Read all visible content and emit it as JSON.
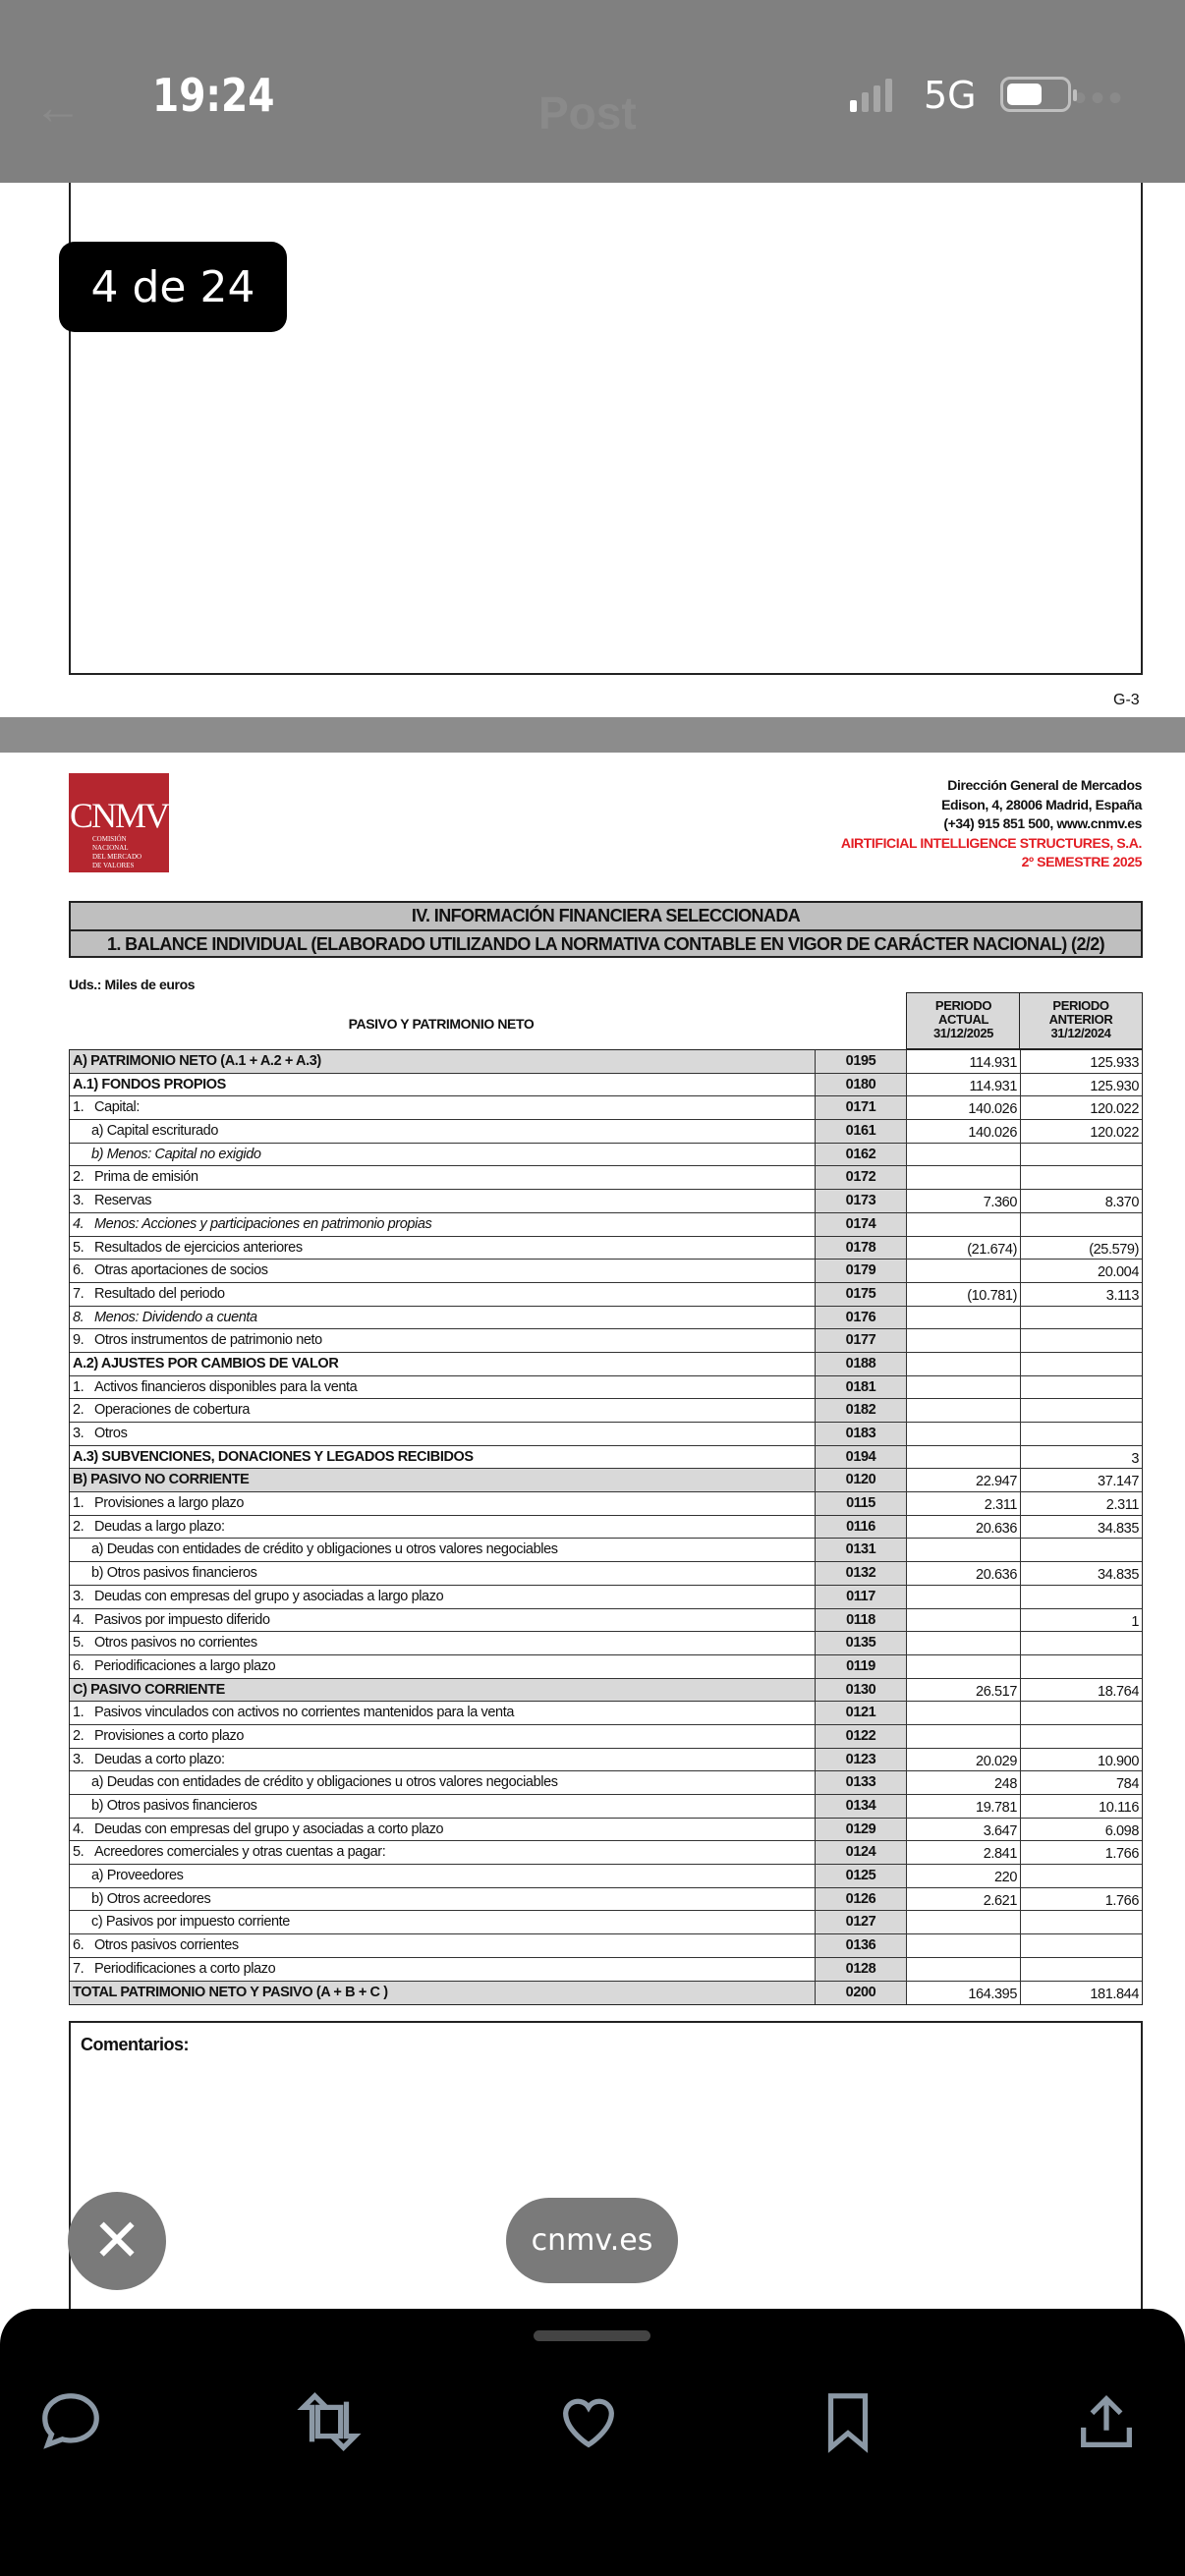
{
  "status_bar": {
    "time": "19:24",
    "network": "5G",
    "battery_level": 0.6,
    "signal_bars_active": 1
  },
  "nav": {
    "title": "Post"
  },
  "viewer": {
    "page_counter": "4 de 24",
    "prev_page_label": "G-3",
    "source_domain": "cnmv.es"
  },
  "colors": {
    "logo_red": "#b5262f",
    "company_red": "#e31e24",
    "header_gray": "#bfbfbf",
    "cell_gray": "#d9d9d9"
  },
  "document": {
    "logo": {
      "text": "CNMV",
      "subtitle": "Comisión Nacional del Mercado de Valores"
    },
    "header_lines": [
      "Dirección General de Mercados",
      "Edison, 4, 28006 Madrid, España",
      "(+34) 915  851  500, www.cnmv.es"
    ],
    "company": "AIRTIFICIAL INTELLIGENCE STRUCTURES, S.A.",
    "period": "2º SEMESTRE 2025",
    "section_title": "IV. INFORMACIÓN FINANCIERA SELECCIONADA",
    "subtitle": "1. BALANCE INDIVIDUAL (ELABORADO UTILIZANDO LA NORMATIVA CONTABLE EN VIGOR DE CARÁCTER NACIONAL) (2/2)",
    "units": "Uds.: Miles de euros",
    "columns": {
      "label": "PASIVO Y PATRIMONIO NETO",
      "actual": [
        "PERIODO",
        "ACTUAL",
        "31/12/2025"
      ],
      "anterior": [
        "PERIODO",
        "ANTERIOR",
        "31/12/2024"
      ]
    },
    "rows": [
      {
        "num": "",
        "label": "A) PATRIMONIO NETO (A.1 + A.2 + A.3)",
        "code": "0195",
        "actual": "114.931",
        "anterior": "125.933",
        "style": "gray bold"
      },
      {
        "num": "",
        "label": "A.1) FONDOS PROPIOS",
        "code": "0180",
        "actual": "114.931",
        "anterior": "125.930",
        "style": "bold"
      },
      {
        "num": "1.",
        "label": "Capital:",
        "code": "0171",
        "actual": "140.026",
        "anterior": "120.022",
        "style": ""
      },
      {
        "num": "",
        "label": "a) Capital escriturado",
        "code": "0161",
        "actual": "140.026",
        "anterior": "120.022",
        "style": "ind"
      },
      {
        "num": "",
        "label": "b) Menos: Capital no exigido",
        "code": "0162",
        "actual": "",
        "anterior": "",
        "style": "ind ital"
      },
      {
        "num": "2.",
        "label": "Prima de emisión",
        "code": "0172",
        "actual": "",
        "anterior": "",
        "style": ""
      },
      {
        "num": "3.",
        "label": "Reservas",
        "code": "0173",
        "actual": "7.360",
        "anterior": "8.370",
        "style": ""
      },
      {
        "num": "4.",
        "label": "Menos: Acciones y participaciones en patrimonio propias",
        "code": "0174",
        "actual": "",
        "anterior": "",
        "style": "ital"
      },
      {
        "num": "5.",
        "label": "Resultados de ejercicios anteriores",
        "code": "0178",
        "actual": "(21.674)",
        "anterior": "(25.579)",
        "style": ""
      },
      {
        "num": "6.",
        "label": "Otras aportaciones de socios",
        "code": "0179",
        "actual": "",
        "anterior": "20.004",
        "style": ""
      },
      {
        "num": "7.",
        "label": "Resultado del periodo",
        "code": "0175",
        "actual": "(10.781)",
        "anterior": "3.113",
        "style": ""
      },
      {
        "num": "8.",
        "label": "Menos: Dividendo a cuenta",
        "code": "0176",
        "actual": "",
        "anterior": "",
        "style": "ital"
      },
      {
        "num": "9.",
        "label": "Otros instrumentos de patrimonio neto",
        "code": "0177",
        "actual": "",
        "anterior": "",
        "style": ""
      },
      {
        "num": "",
        "label": "A.2) AJUSTES POR CAMBIOS DE VALOR",
        "code": "0188",
        "actual": "",
        "anterior": "",
        "style": "bold"
      },
      {
        "num": "1.",
        "label": "Activos financieros disponibles para la venta",
        "code": "0181",
        "actual": "",
        "anterior": "",
        "style": ""
      },
      {
        "num": "2.",
        "label": "Operaciones de cobertura",
        "code": "0182",
        "actual": "",
        "anterior": "",
        "style": ""
      },
      {
        "num": "3.",
        "label": "Otros",
        "code": "0183",
        "actual": "",
        "anterior": "",
        "style": ""
      },
      {
        "num": "",
        "label": "A.3) SUBVENCIONES, DONACIONES Y LEGADOS RECIBIDOS",
        "code": "0194",
        "actual": "",
        "anterior": "3",
        "style": "bold"
      },
      {
        "num": "",
        "label": "B) PASIVO NO CORRIENTE",
        "code": "0120",
        "actual": "22.947",
        "anterior": "37.147",
        "style": "gray bold"
      },
      {
        "num": "1.",
        "label": "Provisiones a largo plazo",
        "code": "0115",
        "actual": "2.311",
        "anterior": "2.311",
        "style": ""
      },
      {
        "num": "2.",
        "label": "Deudas a largo plazo:",
        "code": "0116",
        "actual": "20.636",
        "anterior": "34.835",
        "style": ""
      },
      {
        "num": "",
        "label": "a) Deudas con entidades de crédito y obligaciones u otros valores negociables",
        "code": "0131",
        "actual": "",
        "anterior": "",
        "style": "ind"
      },
      {
        "num": "",
        "label": "b) Otros pasivos financieros",
        "code": "0132",
        "actual": "20.636",
        "anterior": "34.835",
        "style": "ind"
      },
      {
        "num": "3.",
        "label": "Deudas con empresas del grupo y asociadas a largo plazo",
        "code": "0117",
        "actual": "",
        "anterior": "",
        "style": ""
      },
      {
        "num": "4.",
        "label": "Pasivos por impuesto diferido",
        "code": "0118",
        "actual": "",
        "anterior": "1",
        "style": ""
      },
      {
        "num": "5.",
        "label": "Otros pasivos no corrientes",
        "code": "0135",
        "actual": "",
        "anterior": "",
        "style": ""
      },
      {
        "num": "6.",
        "label": "Periodificaciones a largo plazo",
        "code": "0119",
        "actual": "",
        "anterior": "",
        "style": ""
      },
      {
        "num": "",
        "label": "C) PASIVO CORRIENTE",
        "code": "0130",
        "actual": "26.517",
        "anterior": "18.764",
        "style": "gray bold"
      },
      {
        "num": "1.",
        "label": "Pasivos vinculados con activos no corrientes mantenidos para la venta",
        "code": "0121",
        "actual": "",
        "anterior": "",
        "style": ""
      },
      {
        "num": "2.",
        "label": "Provisiones a corto plazo",
        "code": "0122",
        "actual": "",
        "anterior": "",
        "style": ""
      },
      {
        "num": "3.",
        "label": "Deudas a corto plazo:",
        "code": "0123",
        "actual": "20.029",
        "anterior": "10.900",
        "style": ""
      },
      {
        "num": "",
        "label": "a) Deudas con entidades de crédito y obligaciones u otros valores negociables",
        "code": "0133",
        "actual": "248",
        "anterior": "784",
        "style": "ind"
      },
      {
        "num": "",
        "label": "b) Otros pasivos financieros",
        "code": "0134",
        "actual": "19.781",
        "anterior": "10.116",
        "style": "ind"
      },
      {
        "num": "4.",
        "label": "Deudas con empresas del grupo y asociadas a corto plazo",
        "code": "0129",
        "actual": "3.647",
        "anterior": "6.098",
        "style": ""
      },
      {
        "num": "5.",
        "label": "Acreedores comerciales y otras cuentas a pagar:",
        "code": "0124",
        "actual": "2.841",
        "anterior": "1.766",
        "style": ""
      },
      {
        "num": "",
        "label": "a) Proveedores",
        "code": "0125",
        "actual": "220",
        "anterior": "",
        "style": "ind"
      },
      {
        "num": "",
        "label": "b) Otros acreedores",
        "code": "0126",
        "actual": "2.621",
        "anterior": "1.766",
        "style": "ind"
      },
      {
        "num": "",
        "label": "c) Pasivos por impuesto corriente",
        "code": "0127",
        "actual": "",
        "anterior": "",
        "style": "ind"
      },
      {
        "num": "6.",
        "label": "Otros pasivos corrientes",
        "code": "0136",
        "actual": "",
        "anterior": "",
        "style": ""
      },
      {
        "num": "7.",
        "label": "Periodificaciones a corto plazo",
        "code": "0128",
        "actual": "",
        "anterior": "",
        "style": ""
      },
      {
        "num": "",
        "label": "TOTAL PATRIMONIO NETO Y PASIVO (A + B + C )",
        "code": "0200",
        "actual": "164.395",
        "anterior": "181.844",
        "style": "gray bold"
      }
    ],
    "comments_label": "Comentarios:"
  },
  "bottom_bar": {
    "icons": [
      "comment-icon",
      "repost-icon",
      "heart-icon",
      "bookmark-icon",
      "share-icon"
    ]
  }
}
